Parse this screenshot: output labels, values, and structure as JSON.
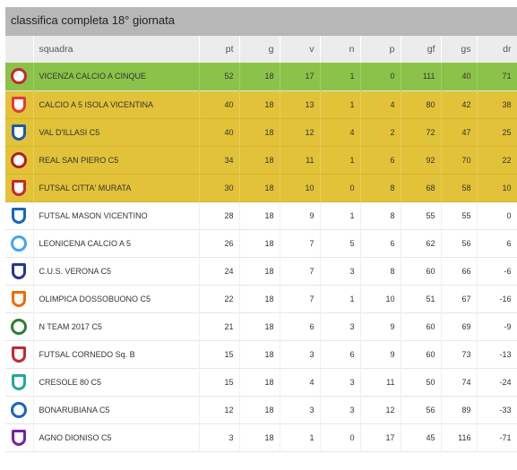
{
  "title": "classifica completa 18° giornata",
  "headers": {
    "squadra": "squadra",
    "pt": "pt",
    "g": "g",
    "v": "v",
    "n": "n",
    "p": "p",
    "gf": "gf",
    "gs": "gs",
    "dr": "dr"
  },
  "rows": [
    {
      "team": "VICENZA CALCIO A CINQUE",
      "pt": "52",
      "g": "18",
      "v": "17",
      "n": "1",
      "p": "0",
      "gf": "111",
      "gs": "40",
      "dr": "71",
      "highlight": "green",
      "logo": "vicenza-logo-icon",
      "logo_color": "#c62828"
    },
    {
      "team": "CALCIO A 5 ISOLA VICENTINA",
      "pt": "40",
      "g": "18",
      "v": "13",
      "n": "1",
      "p": "4",
      "gf": "80",
      "gs": "42",
      "dr": "38",
      "highlight": "yellow",
      "logo": "isola-logo-icon",
      "logo_color": "#e53935"
    },
    {
      "team": "VAL D'ILLASI C5",
      "pt": "40",
      "g": "18",
      "v": "12",
      "n": "4",
      "p": "2",
      "gf": "72",
      "gs": "47",
      "dr": "25",
      "highlight": "yellow",
      "logo": "illasi-logo-icon",
      "logo_color": "#1e5aa8"
    },
    {
      "team": "REAL SAN PIERO C5",
      "pt": "34",
      "g": "18",
      "v": "11",
      "n": "1",
      "p": "6",
      "gf": "92",
      "gs": "70",
      "dr": "22",
      "highlight": "yellow",
      "logo": "san-piero-logo-icon",
      "logo_color": "#b71c1c"
    },
    {
      "team": "FUTSAL CITTA' MURATA",
      "pt": "30",
      "g": "18",
      "v": "10",
      "n": "0",
      "p": "8",
      "gf": "68",
      "gs": "58",
      "dr": "10",
      "highlight": "yellow",
      "logo": "citta-murata-logo-icon",
      "logo_color": "#c62828"
    },
    {
      "team": "FUTSAL MASON VICENTINO",
      "pt": "28",
      "g": "18",
      "v": "9",
      "n": "1",
      "p": "8",
      "gf": "55",
      "gs": "55",
      "dr": "0",
      "highlight": "none",
      "logo": "mason-logo-icon",
      "logo_color": "#1565c0"
    },
    {
      "team": "LEONICENA CALCIO A 5",
      "pt": "26",
      "g": "18",
      "v": "7",
      "n": "5",
      "p": "6",
      "gf": "62",
      "gs": "56",
      "dr": "6",
      "highlight": "none",
      "logo": "leonicena-logo-icon",
      "logo_color": "#42a5f5"
    },
    {
      "team": "C.U.S. VERONA C5",
      "pt": "24",
      "g": "18",
      "v": "7",
      "n": "3",
      "p": "8",
      "gf": "60",
      "gs": "66",
      "dr": "-6",
      "highlight": "none",
      "logo": "cus-verona-logo-icon",
      "logo_color": "#283593"
    },
    {
      "team": "OLIMPICA DOSSOBUONO C5",
      "pt": "22",
      "g": "18",
      "v": "7",
      "n": "1",
      "p": "10",
      "gf": "51",
      "gs": "67",
      "dr": "-16",
      "highlight": "none",
      "logo": "dossobuono-logo-icon",
      "logo_color": "#ef6c00"
    },
    {
      "team": "N TEAM 2017 C5",
      "pt": "21",
      "g": "18",
      "v": "6",
      "n": "3",
      "p": "9",
      "gf": "60",
      "gs": "69",
      "dr": "-9",
      "highlight": "none",
      "logo": "n-team-logo-icon",
      "logo_color": "#2e7d32"
    },
    {
      "team": "FUTSAL CORNEDO Sq. B",
      "pt": "15",
      "g": "18",
      "v": "3",
      "n": "6",
      "p": "9",
      "gf": "60",
      "gs": "73",
      "dr": "-13",
      "highlight": "none",
      "logo": "cornedo-logo-icon",
      "logo_color": "#c62828"
    },
    {
      "team": "CRESOLE 80 C5",
      "pt": "15",
      "g": "18",
      "v": "4",
      "n": "3",
      "p": "11",
      "gf": "50",
      "gs": "74",
      "dr": "-24",
      "highlight": "none",
      "logo": "cresole-logo-icon",
      "logo_color": "#26a69a"
    },
    {
      "team": "BONARUBIANA C5",
      "pt": "12",
      "g": "18",
      "v": "3",
      "n": "3",
      "p": "12",
      "gf": "56",
      "gs": "89",
      "dr": "-33",
      "highlight": "none",
      "logo": "bonarubiana-logo-icon",
      "logo_color": "#1565c0"
    },
    {
      "team": "AGNO DIONISO C5",
      "pt": "3",
      "g": "18",
      "v": "1",
      "n": "0",
      "p": "17",
      "gf": "45",
      "gs": "116",
      "dr": "-71",
      "highlight": "none",
      "logo": "agno-dioniso-logo-icon",
      "logo_color": "#7b1fa2"
    }
  ],
  "colors": {
    "header_bar": "#b7b7b7",
    "column_header": "#ececec",
    "first_place": "#8bc34a",
    "playoff": "#e2c239"
  }
}
